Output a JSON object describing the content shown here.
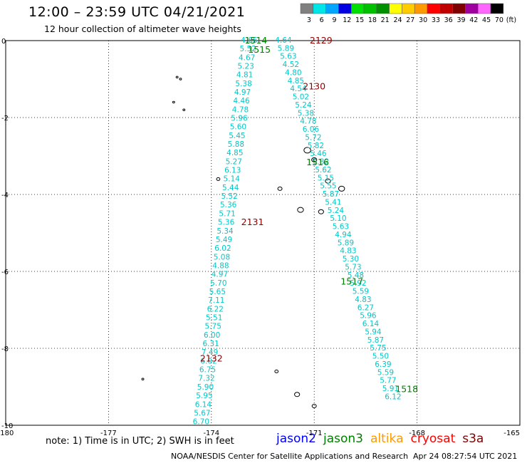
{
  "header": {
    "title": "12:00 – 23:59 UTC 04/21/2021",
    "subtitle": "12 hour collection of altimeter wave heights"
  },
  "color_scale": {
    "unit": "(ft)",
    "bins": [
      {
        "label": "3",
        "color": "#808080"
      },
      {
        "label": "6",
        "color": "#00e5e5"
      },
      {
        "label": "9",
        "color": "#00a5ff"
      },
      {
        "label": "12",
        "color": "#0000e0"
      },
      {
        "label": "15",
        "color": "#00e000"
      },
      {
        "label": "18",
        "color": "#00c000"
      },
      {
        "label": "21",
        "color": "#009000"
      },
      {
        "label": "24",
        "color": "#ffff00"
      },
      {
        "label": "27",
        "color": "#ffcc00"
      },
      {
        "label": "30",
        "color": "#ff9900"
      },
      {
        "label": "33",
        "color": "#ff0000"
      },
      {
        "label": "36",
        "color": "#c00000"
      },
      {
        "label": "39",
        "color": "#800000"
      },
      {
        "label": "42",
        "color": "#a000a0"
      },
      {
        "label": "45",
        "color": "#ff66ff"
      },
      {
        "label": "70",
        "color": "#000000"
      }
    ]
  },
  "axes": {
    "lon_ticks": [
      "-180",
      "-177",
      "-174",
      "-171",
      "-168",
      "-165"
    ],
    "lat_ticks": [
      "0",
      "-2",
      "-4",
      "-6",
      "-8",
      "-10"
    ]
  },
  "colors": {
    "wave": "#00c8c8",
    "jason3": "#008000",
    "s3a": "#8b0000"
  },
  "tracks": {
    "left": [
      "4.66",
      "5.52",
      "4.67",
      "5.23",
      "4.81",
      "5.38",
      "4.97",
      "4.46",
      "4.78",
      "5.96",
      "5.60",
      "5.45",
      "5.88",
      "4.85",
      "5.27",
      "6.13",
      "5.14",
      "5.44",
      "5.52",
      "5.36",
      "5.71",
      "5.36",
      "5.34",
      "5.49",
      "6.02",
      "5.08",
      "4.88",
      "4.97",
      "5.70",
      "5.65",
      "7.11",
      "6.22",
      "5.51",
      "5.75",
      "6.00",
      "6.31",
      "7.49",
      "6.02",
      "6.75",
      "7.32",
      "5.90",
      "5.95",
      "6.14",
      "5.67",
      "6.70"
    ],
    "right": [
      "4.64",
      "5.89",
      "5.63",
      "4.52",
      "4.80",
      "4.85",
      "4.54",
      "5.02",
      "5.24",
      "5.38",
      "4.78",
      "6.06",
      "5.72",
      "5.82",
      "5.46",
      "5.82",
      "5.62",
      "5.15",
      "5.55",
      "5.87",
      "5.41",
      "5.24",
      "5.10",
      "5.63",
      "4.94",
      "5.89",
      "4.83",
      "5.30",
      "5.73",
      "5.48",
      "5.92",
      "5.59",
      "4.83",
      "6.27",
      "5.96",
      "6.14",
      "5.94",
      "5.87",
      "5.75",
      "5.50",
      "6.39",
      "5.59",
      "5.77",
      "5.91",
      "6.12"
    ]
  },
  "pass_labels": [
    {
      "text": "1514",
      "sat": "jason3",
      "lon": -172.7,
      "lat": 0.02
    },
    {
      "text": "1515",
      "sat": "jason3",
      "lon": -172.6,
      "lat": -0.22
    },
    {
      "text": "2129",
      "sat": "s3a",
      "lon": -170.8,
      "lat": 0.02
    },
    {
      "text": "2130",
      "sat": "s3a",
      "lon": -171.0,
      "lat": -1.18
    },
    {
      "text": "1516",
      "sat": "jason3",
      "lon": -170.9,
      "lat": -3.15
    },
    {
      "text": "2131",
      "sat": "s3a",
      "lon": -172.8,
      "lat": -4.7
    },
    {
      "text": "1517",
      "sat": "jason3",
      "lon": -169.9,
      "lat": -6.25
    },
    {
      "text": "2132",
      "sat": "s3a",
      "lon": -174.0,
      "lat": -8.25
    },
    {
      "text": "1518",
      "sat": "jason3",
      "lon": -168.3,
      "lat": -9.05
    }
  ],
  "footer": {
    "note": "note: 1) Time is in UTC; 2) SWH is in feet",
    "legend": [
      {
        "name": "jason2",
        "color": "#0000ff"
      },
      {
        "name": "jason3",
        "color": "#008000"
      },
      {
        "name": "altika",
        "color": "#ff9900"
      },
      {
        "name": "cryosat",
        "color": "#ff0000"
      },
      {
        "name": "s3a",
        "color": "#800000"
      }
    ],
    "credit": "NOAA/NESDIS Center for Satellite Applications and Research",
    "generated": "Apr 24 08:27:54 UTC 2021"
  }
}
